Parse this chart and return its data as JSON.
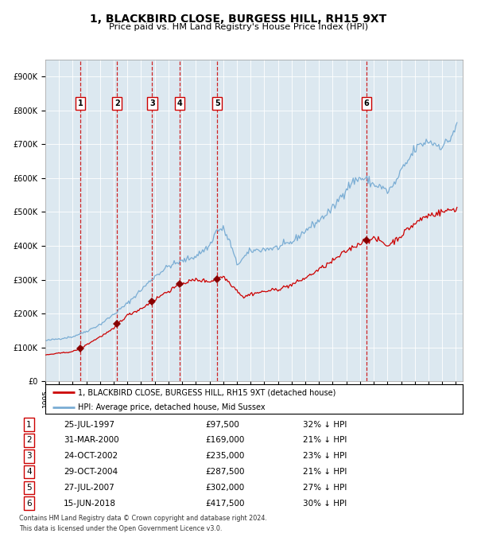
{
  "title": "1, BLACKBIRD CLOSE, BURGESS HILL, RH15 9XT",
  "subtitle": "Price paid vs. HM Land Registry's House Price Index (HPI)",
  "title_fontsize": 10,
  "subtitle_fontsize": 8.5,
  "background_color": "#dce8f0",
  "ylim": [
    0,
    950000
  ],
  "yticks": [
    0,
    100000,
    200000,
    300000,
    400000,
    500000,
    600000,
    700000,
    800000,
    900000
  ],
  "ytick_labels": [
    "£0",
    "£100K",
    "£200K",
    "£300K",
    "£400K",
    "£500K",
    "£600K",
    "£700K",
    "£800K",
    "£900K"
  ],
  "sale_prices": [
    97500,
    169000,
    235000,
    287500,
    302000,
    417500
  ],
  "sale_labels": [
    "1",
    "2",
    "3",
    "4",
    "5",
    "6"
  ],
  "sale_date_labels": [
    "25-JUL-1997",
    "31-MAR-2000",
    "24-OCT-2002",
    "29-OCT-2004",
    "27-JUL-2007",
    "15-JUN-2018"
  ],
  "sale_price_labels": [
    "£97,500",
    "£169,000",
    "£235,000",
    "£287,500",
    "£302,000",
    "£417,500"
  ],
  "sale_hpi_labels": [
    "32% ↓ HPI",
    "21% ↓ HPI",
    "23% ↓ HPI",
    "21% ↓ HPI",
    "27% ↓ HPI",
    "30% ↓ HPI"
  ],
  "sale_x_numeric": [
    1997.57,
    2000.25,
    2002.81,
    2004.83,
    2007.57,
    2018.45
  ],
  "legend_line1": "1, BLACKBIRD CLOSE, BURGESS HILL, RH15 9XT (detached house)",
  "legend_line2": "HPI: Average price, detached house, Mid Sussex",
  "footer1": "Contains HM Land Registry data © Crown copyright and database right 2024.",
  "footer2": "This data is licensed under the Open Government Licence v3.0.",
  "price_line_color": "#cc0000",
  "hpi_line_color": "#7aadd4",
  "dashed_line_color": "#cc0000",
  "marker_color": "#880000",
  "xlim_left": 1995.0,
  "xlim_right": 2025.5
}
